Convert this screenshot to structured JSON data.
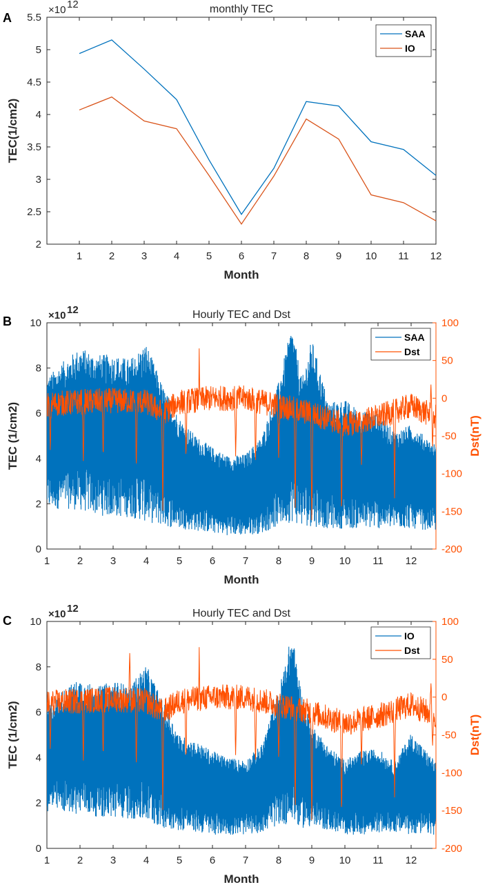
{
  "chart_data": [
    {
      "panel_label": "A",
      "type": "line",
      "title": "monthly TEC",
      "xlabel": "Month",
      "ylabel": "TEC(1/cm2)",
      "y_multiplier": "×10",
      "y_exponent": "12",
      "xlim": [
        0,
        12
      ],
      "ylim": [
        2,
        5.5
      ],
      "x_ticks": [
        "1",
        "2",
        "3",
        "4",
        "5",
        "6",
        "7",
        "8",
        "9",
        "10",
        "11",
        "12"
      ],
      "y_ticks": [
        "2",
        "2.5",
        "3",
        "3.5",
        "4",
        "4.5",
        "5",
        "5.5"
      ],
      "categories": [
        1,
        2,
        3,
        4,
        5,
        6,
        7,
        8,
        9,
        10,
        11,
        12
      ],
      "series": [
        {
          "name": "SAA",
          "color": "#0072BD",
          "values": [
            4.94,
            5.15,
            4.7,
            4.23,
            3.3,
            2.46,
            3.17,
            4.2,
            4.13,
            3.58,
            3.46,
            3.06
          ]
        },
        {
          "name": "IO",
          "color": "#D95319",
          "values": [
            4.07,
            4.27,
            3.9,
            3.78,
            3.06,
            2.31,
            3.05,
            3.93,
            3.62,
            2.76,
            2.64,
            2.36
          ]
        }
      ]
    },
    {
      "panel_label": "B",
      "type": "line",
      "title": "Hourly TEC and Dst",
      "xlabel": "Month",
      "ylabel": "TEC (1/cm2)",
      "ylabel_right": "Dst(nT)",
      "y_multiplier": "×10",
      "y_exponent": "12",
      "xlim": [
        1,
        12.75
      ],
      "ylim": [
        0,
        10
      ],
      "ylim_right": [
        -200,
        100
      ],
      "x_ticks": [
        "1",
        "2",
        "3",
        "4",
        "5",
        "6",
        "7",
        "8",
        "9",
        "10",
        "11",
        "12"
      ],
      "y_ticks": [
        "0",
        "2",
        "4",
        "6",
        "8",
        "10"
      ],
      "y_ticks_right": [
        "-200",
        "-150",
        "-100",
        "-50",
        "0",
        "50",
        "100"
      ],
      "series": [
        {
          "name": "SAA",
          "color": "#0072BD",
          "envelope_x": [
            1,
            1.5,
            2,
            2.5,
            3,
            3.5,
            4,
            4.5,
            5,
            5.5,
            6,
            6.5,
            7,
            7.5,
            8,
            8.4,
            8.7,
            9,
            9.5,
            10,
            10.5,
            11,
            11.5,
            12,
            12.75
          ],
          "envelope_max": [
            7.6,
            8.3,
            8.9,
            8.6,
            8.6,
            8.4,
            9.1,
            7.2,
            5.8,
            5.0,
            4.5,
            4.1,
            4.2,
            5.0,
            7.4,
            9.9,
            7.5,
            9.3,
            6.5,
            6.6,
            6.1,
            6.0,
            5.2,
            5.5,
            4.6
          ],
          "envelope_min": [
            1.7,
            1.8,
            1.7,
            1.5,
            1.4,
            1.4,
            1.2,
            1.0,
            0.9,
            0.8,
            0.7,
            0.6,
            0.6,
            0.7,
            1.0,
            1.2,
            1.0,
            1.0,
            0.9,
            0.9,
            0.9,
            0.9,
            0.9,
            0.9,
            0.8
          ]
        },
        {
          "name": "Dst",
          "color": "#FF5000",
          "baseline_x": [
            1,
            2,
            3,
            4,
            4.5,
            5,
            6,
            7,
            8,
            9,
            10,
            11,
            12,
            12.75
          ],
          "baseline": [
            -8,
            -5,
            -3,
            -5,
            -20,
            -5,
            0,
            0,
            -10,
            -20,
            -35,
            -25,
            -10,
            -25
          ],
          "spikes": [
            [
              1.1,
              -70
            ],
            [
              2.1,
              -85
            ],
            [
              2.7,
              -80
            ],
            [
              3.7,
              -95
            ],
            [
              4.5,
              -150
            ],
            [
              5.2,
              -85
            ],
            [
              5.6,
              -100
            ],
            [
              5.6,
              70
            ],
            [
              6.7,
              -80
            ],
            [
              7.3,
              -90
            ],
            [
              8.0,
              -80
            ],
            [
              8.5,
              -160
            ],
            [
              9.0,
              -170
            ],
            [
              9.9,
              -160
            ],
            [
              10.5,
              -90
            ],
            [
              11.5,
              -135
            ],
            [
              12.6,
              20
            ],
            [
              12.65,
              -65
            ]
          ]
        }
      ]
    },
    {
      "panel_label": "C",
      "type": "line",
      "title": "Hourly TEC and Dst",
      "xlabel": "Month",
      "ylabel": "TEC (1/cm2)",
      "ylabel_right": "Dst(nT)",
      "y_multiplier": "×10",
      "y_exponent": "12",
      "xlim": [
        1,
        12.75
      ],
      "ylim": [
        0,
        10
      ],
      "ylim_right": [
        -200,
        100
      ],
      "x_ticks": [
        "1",
        "2",
        "3",
        "4",
        "5",
        "6",
        "7",
        "8",
        "9",
        "10",
        "11",
        "12"
      ],
      "y_ticks": [
        "0",
        "2",
        "4",
        "6",
        "8",
        "10"
      ],
      "y_ticks_right": [
        "-200",
        "-150",
        "-100",
        "-50",
        "0",
        "50",
        "100"
      ],
      "series": [
        {
          "name": "IO",
          "color": "#0072BD",
          "envelope_x": [
            1,
            1.5,
            2,
            2.5,
            3,
            3.5,
            4,
            4.5,
            5,
            5.5,
            6,
            6.5,
            7,
            7.5,
            8,
            8.4,
            8.7,
            9,
            9.5,
            10,
            10.5,
            11,
            11.5,
            12,
            12.75
          ],
          "envelope_max": [
            6.3,
            7.0,
            7.5,
            7.1,
            7.4,
            7.2,
            8.1,
            6.5,
            5.0,
            4.7,
            4.3,
            4.0,
            3.9,
            4.6,
            7.0,
            9.5,
            6.8,
            5.5,
            4.5,
            3.9,
            4.3,
            4.4,
            3.8,
            5.1,
            3.8
          ],
          "envelope_min": [
            1.6,
            1.6,
            1.5,
            1.4,
            1.3,
            1.3,
            1.1,
            0.9,
            0.8,
            0.7,
            0.6,
            0.6,
            0.6,
            0.7,
            1.0,
            1.1,
            0.9,
            0.9,
            0.8,
            0.6,
            0.6,
            0.7,
            0.7,
            0.6,
            0.6
          ]
        },
        {
          "name": "Dst",
          "color": "#FF5000",
          "baseline_x": [
            1,
            2,
            3,
            4,
            4.5,
            5,
            6,
            7,
            8,
            9,
            10,
            11,
            12,
            12.75
          ],
          "baseline": [
            -8,
            -5,
            -3,
            -5,
            -20,
            -5,
            0,
            0,
            -10,
            -20,
            -35,
            -25,
            -10,
            -25
          ],
          "spikes": [
            [
              1.1,
              -70
            ],
            [
              2.1,
              -85
            ],
            [
              2.7,
              -80
            ],
            [
              3.5,
              60
            ],
            [
              3.7,
              -95
            ],
            [
              4.5,
              -150
            ],
            [
              5.2,
              -85
            ],
            [
              5.6,
              -100
            ],
            [
              5.6,
              70
            ],
            [
              6.7,
              -80
            ],
            [
              7.3,
              -90
            ],
            [
              8.0,
              -80
            ],
            [
              8.5,
              -160
            ],
            [
              9.0,
              -170
            ],
            [
              9.9,
              -160
            ],
            [
              10.5,
              -90
            ],
            [
              11.5,
              -135
            ],
            [
              12.6,
              20
            ],
            [
              12.65,
              -65
            ]
          ]
        }
      ]
    }
  ]
}
